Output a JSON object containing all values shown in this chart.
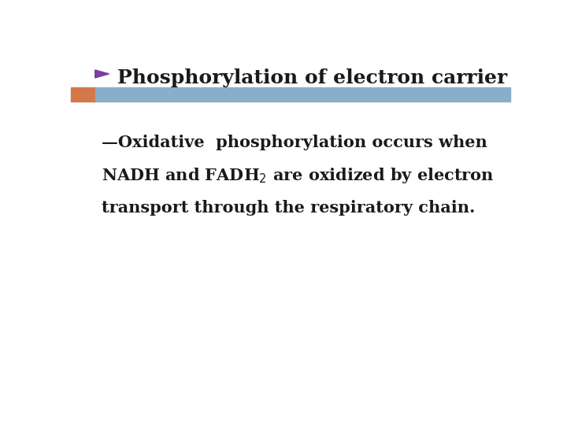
{
  "background_color": "#ffffff",
  "title_text": "Phosphorylation of electron carrier",
  "title_color": "#1a1a1a",
  "title_fontsize": 18,
  "title_bold": true,
  "arrow_color": "#7B3F9E",
  "bar_orange_color": "#D4784A",
  "bar_blue_color": "#8AAEC8",
  "body_fontsize": 15,
  "body_color": "#1a1a1a",
  "body_bold": true,
  "sub2_text": "2",
  "sub2_fontsize": 11
}
